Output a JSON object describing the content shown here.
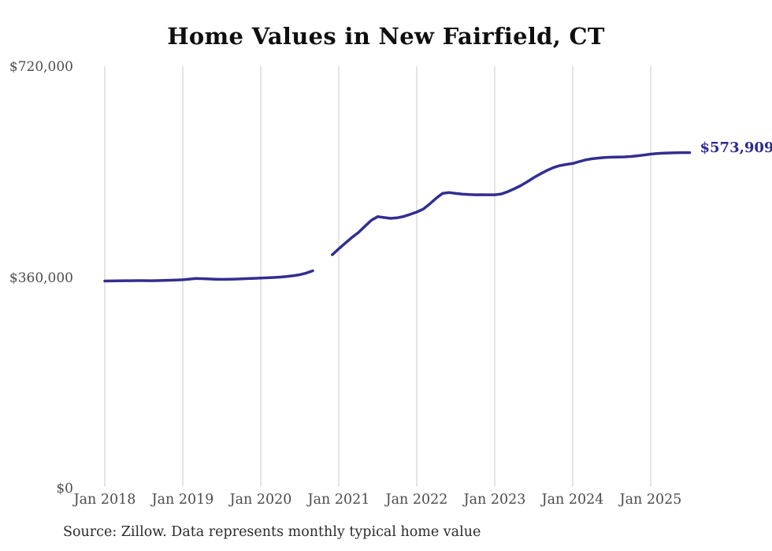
{
  "chart_data": {
    "type": "line",
    "title": "Home Values in New Fairfield, CT",
    "source_note": "Source: Zillow. Data represents monthly typical home value",
    "end_label": "$573,909",
    "latest_value": 573909,
    "line_color": "#322e91",
    "end_label_color": "#2c2a8f",
    "grid_color": "#c9c9c9",
    "tick_label_color": "#4c4c4c",
    "ylim": [
      0,
      720000
    ],
    "grid": "vertical-only",
    "legend": "none",
    "x_ticks": [
      "Jan 2018",
      "Jan 2019",
      "Jan 2020",
      "Jan 2021",
      "Jan 2022",
      "Jan 2023",
      "Jan 2024",
      "Jan 2025"
    ],
    "y_ticks": [
      {
        "label": "$720,000",
        "value": 720000
      },
      {
        "label": "$360,000",
        "value": 360000
      },
      {
        "label": "$0",
        "value": 0
      }
    ],
    "series": [
      {
        "name": "Typical home value",
        "start_month": "2018-01",
        "months_per_point": 1,
        "note": "null entries are months with no data (gap in line around Oct-Nov 2020)",
        "monthly_values": [
          354600,
          354800,
          355000,
          355100,
          355200,
          355300,
          355300,
          355200,
          355300,
          355600,
          355900,
          356300,
          356800,
          357900,
          358900,
          358700,
          358100,
          357700,
          357500,
          357600,
          357900,
          358300,
          358800,
          359200,
          359600,
          360100,
          360700,
          361400,
          362400,
          363700,
          365400,
          368200,
          372100,
          null,
          null,
          399400,
          409500,
          419400,
          428800,
          437300,
          447800,
          458300,
          464600,
          463000,
          461600,
          462500,
          464900,
          468500,
          472400,
          477500,
          486200,
          496100,
          504400,
          505600,
          504100,
          502900,
          502200,
          501900,
          502000,
          501900,
          501800,
          503200,
          507100,
          512100,
          517400,
          524100,
          531100,
          537400,
          543100,
          548100,
          551600,
          553600,
          555300,
          558500,
          561500,
          563300,
          564600,
          565600,
          566100,
          566300,
          566600,
          567300,
          568500,
          569800,
          571300,
          572300,
          572900,
          573300,
          573600,
          573800,
          573909
        ]
      }
    ]
  }
}
